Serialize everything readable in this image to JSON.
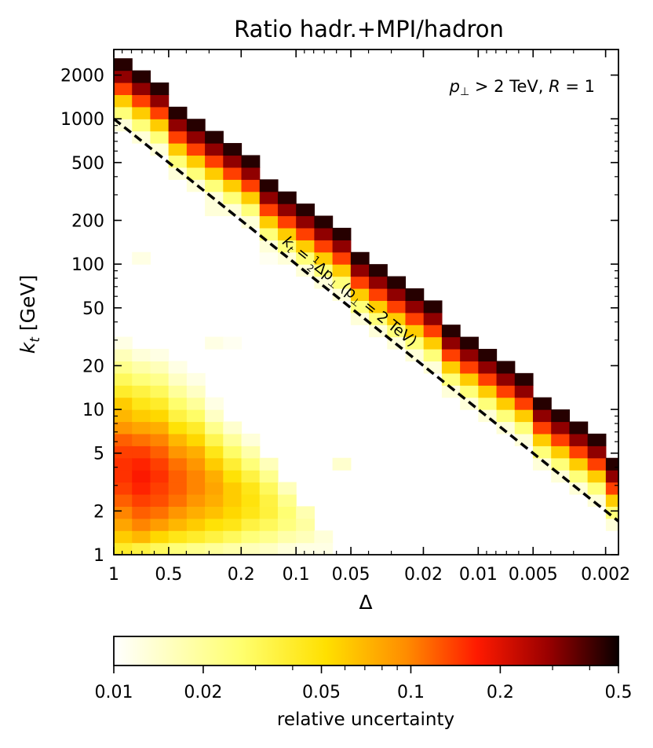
{
  "chart_data": {
    "type": "heatmap",
    "title": "Ratio hadr.+MPI/hadron",
    "annotation": {
      "p": "p",
      "perp": "⊥",
      "gt": " > 2 TeV, ",
      "R": "R",
      "eq": " = 1"
    },
    "xlabel": "Δ",
    "ylabel": "k",
    "ylabel_sub": "t",
    "ylabel_unit": " [GeV]",
    "x_scale": "log",
    "x_reversed": true,
    "xlim": [
      1,
      0.0017
    ],
    "y_scale": "log",
    "ylim": [
      1,
      3000
    ],
    "x_ticks": [
      {
        "v": 1,
        "label": "1"
      },
      {
        "v": 0.5,
        "label": "0.5"
      },
      {
        "v": 0.2,
        "label": "0.2"
      },
      {
        "v": 0.1,
        "label": "0.1"
      },
      {
        "v": 0.05,
        "label": "0.05"
      },
      {
        "v": 0.02,
        "label": "0.02"
      },
      {
        "v": 0.01,
        "label": "0.01"
      },
      {
        "v": 0.005,
        "label": "0.005"
      },
      {
        "v": 0.002,
        "label": "0.002"
      }
    ],
    "y_ticks": [
      {
        "v": 1,
        "label": "1"
      },
      {
        "v": 2,
        "label": "2"
      },
      {
        "v": 5,
        "label": "5"
      },
      {
        "v": 10,
        "label": "10"
      },
      {
        "v": 20,
        "label": "20"
      },
      {
        "v": 50,
        "label": "50"
      },
      {
        "v": 100,
        "label": "100"
      },
      {
        "v": 200,
        "label": "200"
      },
      {
        "v": 500,
        "label": "500"
      },
      {
        "v": 1000,
        "label": "1000"
      },
      {
        "v": 2000,
        "label": "2000"
      }
    ],
    "reference_line": {
      "label_parts": {
        "k": "k",
        "t": "t",
        "eq": " = ",
        "num": "1",
        "den": "2",
        "rest": "Δp",
        "perp": "⊥",
        "paren": " (p",
        "perp2": "⊥",
        "tail": " = 2 TeV)"
      },
      "formula": "k_t = 0.5 * Δ * 2000",
      "style": "dashed"
    },
    "grid": false,
    "bins": {
      "x_bins_per_decade": 10,
      "y_bins_per_decade": 12
    },
    "cells": [
      {
        "ix": 0,
        "iy": 0,
        "v": 0.04
      },
      {
        "ix": 0,
        "iy": 1,
        "v": 0.06
      },
      {
        "ix": 0,
        "iy": 2,
        "v": 0.08
      },
      {
        "ix": 0,
        "iy": 3,
        "v": 0.1
      },
      {
        "ix": 0,
        "iy": 4,
        "v": 0.12
      },
      {
        "ix": 0,
        "iy": 5,
        "v": 0.14
      },
      {
        "ix": 0,
        "iy": 6,
        "v": 0.15
      },
      {
        "ix": 0,
        "iy": 7,
        "v": 0.15
      },
      {
        "ix": 0,
        "iy": 8,
        "v": 0.14
      },
      {
        "ix": 0,
        "iy": 9,
        "v": 0.12
      },
      {
        "ix": 0,
        "iy": 10,
        "v": 0.09
      },
      {
        "ix": 0,
        "iy": 11,
        "v": 0.07
      },
      {
        "ix": 0,
        "iy": 12,
        "v": 0.06
      },
      {
        "ix": 0,
        "iy": 13,
        "v": 0.04
      },
      {
        "ix": 0,
        "iy": 14,
        "v": 0.03
      },
      {
        "ix": 0,
        "iy": 15,
        "v": 0.022
      },
      {
        "ix": 0,
        "iy": 16,
        "v": 0.016
      },
      {
        "ix": 0,
        "iy": 17,
        "v": 0.012
      },
      {
        "ix": 1,
        "iy": 0,
        "v": 0.035
      },
      {
        "ix": 1,
        "iy": 1,
        "v": 0.07
      },
      {
        "ix": 1,
        "iy": 2,
        "v": 0.1
      },
      {
        "ix": 1,
        "iy": 3,
        "v": 0.12
      },
      {
        "ix": 1,
        "iy": 4,
        "v": 0.14
      },
      {
        "ix": 1,
        "iy": 5,
        "v": 0.16
      },
      {
        "ix": 1,
        "iy": 6,
        "v": 0.17
      },
      {
        "ix": 1,
        "iy": 7,
        "v": 0.16
      },
      {
        "ix": 1,
        "iy": 8,
        "v": 0.14
      },
      {
        "ix": 1,
        "iy": 9,
        "v": 0.11
      },
      {
        "ix": 1,
        "iy": 10,
        "v": 0.08
      },
      {
        "ix": 1,
        "iy": 11,
        "v": 0.06
      },
      {
        "ix": 1,
        "iy": 12,
        "v": 0.045
      },
      {
        "ix": 1,
        "iy": 13,
        "v": 0.035
      },
      {
        "ix": 1,
        "iy": 14,
        "v": 0.025
      },
      {
        "ix": 1,
        "iy": 15,
        "v": 0.018
      },
      {
        "ix": 1,
        "iy": 16,
        "v": 0.013
      },
      {
        "ix": 2,
        "iy": 0,
        "v": 0.03
      },
      {
        "ix": 2,
        "iy": 1,
        "v": 0.055
      },
      {
        "ix": 2,
        "iy": 2,
        "v": 0.085
      },
      {
        "ix": 2,
        "iy": 3,
        "v": 0.11
      },
      {
        "ix": 2,
        "iy": 4,
        "v": 0.13
      },
      {
        "ix": 2,
        "iy": 5,
        "v": 0.14
      },
      {
        "ix": 2,
        "iy": 6,
        "v": 0.15
      },
      {
        "ix": 2,
        "iy": 7,
        "v": 0.14
      },
      {
        "ix": 2,
        "iy": 8,
        "v": 0.12
      },
      {
        "ix": 2,
        "iy": 9,
        "v": 0.1
      },
      {
        "ix": 2,
        "iy": 10,
        "v": 0.075
      },
      {
        "ix": 2,
        "iy": 11,
        "v": 0.055
      },
      {
        "ix": 2,
        "iy": 12,
        "v": 0.04
      },
      {
        "ix": 2,
        "iy": 13,
        "v": 0.03
      },
      {
        "ix": 2,
        "iy": 14,
        "v": 0.022
      },
      {
        "ix": 2,
        "iy": 15,
        "v": 0.016
      },
      {
        "ix": 2,
        "iy": 16,
        "v": 0.012
      },
      {
        "ix": 3,
        "iy": 0,
        "v": 0.025
      },
      {
        "ix": 3,
        "iy": 1,
        "v": 0.045
      },
      {
        "ix": 3,
        "iy": 2,
        "v": 0.07
      },
      {
        "ix": 3,
        "iy": 3,
        "v": 0.09
      },
      {
        "ix": 3,
        "iy": 4,
        "v": 0.11
      },
      {
        "ix": 3,
        "iy": 5,
        "v": 0.12
      },
      {
        "ix": 3,
        "iy": 6,
        "v": 0.12
      },
      {
        "ix": 3,
        "iy": 7,
        "v": 0.11
      },
      {
        "ix": 3,
        "iy": 8,
        "v": 0.09
      },
      {
        "ix": 3,
        "iy": 9,
        "v": 0.07
      },
      {
        "ix": 3,
        "iy": 10,
        "v": 0.05
      },
      {
        "ix": 3,
        "iy": 11,
        "v": 0.035
      },
      {
        "ix": 3,
        "iy": 12,
        "v": 0.027
      },
      {
        "ix": 3,
        "iy": 13,
        "v": 0.02
      },
      {
        "ix": 3,
        "iy": 14,
        "v": 0.015
      },
      {
        "ix": 3,
        "iy": 15,
        "v": 0.012
      },
      {
        "ix": 4,
        "iy": 0,
        "v": 0.022
      },
      {
        "ix": 4,
        "iy": 1,
        "v": 0.04
      },
      {
        "ix": 4,
        "iy": 2,
        "v": 0.06
      },
      {
        "ix": 4,
        "iy": 3,
        "v": 0.075
      },
      {
        "ix": 4,
        "iy": 4,
        "v": 0.09
      },
      {
        "ix": 4,
        "iy": 5,
        "v": 0.1
      },
      {
        "ix": 4,
        "iy": 6,
        "v": 0.1
      },
      {
        "ix": 4,
        "iy": 7,
        "v": 0.09
      },
      {
        "ix": 4,
        "iy": 8,
        "v": 0.075
      },
      {
        "ix": 4,
        "iy": 9,
        "v": 0.055
      },
      {
        "ix": 4,
        "iy": 10,
        "v": 0.04
      },
      {
        "ix": 4,
        "iy": 11,
        "v": 0.028
      },
      {
        "ix": 4,
        "iy": 12,
        "v": 0.02
      },
      {
        "ix": 4,
        "iy": 13,
        "v": 0.015
      },
      {
        "ix": 4,
        "iy": 14,
        "v": 0.012
      },
      {
        "ix": 5,
        "iy": 0,
        "v": 0.02
      },
      {
        "ix": 5,
        "iy": 1,
        "v": 0.035
      },
      {
        "ix": 5,
        "iy": 2,
        "v": 0.05
      },
      {
        "ix": 5,
        "iy": 3,
        "v": 0.065
      },
      {
        "ix": 5,
        "iy": 4,
        "v": 0.075
      },
      {
        "ix": 5,
        "iy": 5,
        "v": 0.08
      },
      {
        "ix": 5,
        "iy": 6,
        "v": 0.075
      },
      {
        "ix": 5,
        "iy": 7,
        "v": 0.06
      },
      {
        "ix": 5,
        "iy": 8,
        "v": 0.045
      },
      {
        "ix": 5,
        "iy": 9,
        "v": 0.032
      },
      {
        "ix": 5,
        "iy": 10,
        "v": 0.022
      },
      {
        "ix": 5,
        "iy": 11,
        "v": 0.015
      },
      {
        "ix": 5,
        "iy": 12,
        "v": 0.012
      },
      {
        "ix": 6,
        "iy": 0,
        "v": 0.018
      },
      {
        "ix": 6,
        "iy": 1,
        "v": 0.03
      },
      {
        "ix": 6,
        "iy": 2,
        "v": 0.045
      },
      {
        "ix": 6,
        "iy": 3,
        "v": 0.055
      },
      {
        "ix": 6,
        "iy": 4,
        "v": 0.06
      },
      {
        "ix": 6,
        "iy": 5,
        "v": 0.06
      },
      {
        "ix": 6,
        "iy": 6,
        "v": 0.05
      },
      {
        "ix": 6,
        "iy": 7,
        "v": 0.038
      },
      {
        "ix": 6,
        "iy": 8,
        "v": 0.028
      },
      {
        "ix": 6,
        "iy": 9,
        "v": 0.02
      },
      {
        "ix": 6,
        "iy": 10,
        "v": 0.014
      },
      {
        "ix": 7,
        "iy": 0,
        "v": 0.016
      },
      {
        "ix": 7,
        "iy": 1,
        "v": 0.025
      },
      {
        "ix": 7,
        "iy": 2,
        "v": 0.035
      },
      {
        "ix": 7,
        "iy": 3,
        "v": 0.045
      },
      {
        "ix": 7,
        "iy": 4,
        "v": 0.048
      },
      {
        "ix": 7,
        "iy": 5,
        "v": 0.045
      },
      {
        "ix": 7,
        "iy": 6,
        "v": 0.035
      },
      {
        "ix": 7,
        "iy": 7,
        "v": 0.025
      },
      {
        "ix": 7,
        "iy": 8,
        "v": 0.018
      },
      {
        "ix": 7,
        "iy": 9,
        "v": 0.013
      },
      {
        "ix": 8,
        "iy": 0,
        "v": 0.015
      },
      {
        "ix": 8,
        "iy": 1,
        "v": 0.022
      },
      {
        "ix": 8,
        "iy": 2,
        "v": 0.03
      },
      {
        "ix": 8,
        "iy": 3,
        "v": 0.036
      },
      {
        "ix": 8,
        "iy": 4,
        "v": 0.035
      },
      {
        "ix": 8,
        "iy": 5,
        "v": 0.03
      },
      {
        "ix": 8,
        "iy": 6,
        "v": 0.022
      },
      {
        "ix": 8,
        "iy": 7,
        "v": 0.016
      },
      {
        "ix": 9,
        "iy": 0,
        "v": 0.013
      },
      {
        "ix": 9,
        "iy": 1,
        "v": 0.018
      },
      {
        "ix": 9,
        "iy": 2,
        "v": 0.024
      },
      {
        "ix": 9,
        "iy": 3,
        "v": 0.026
      },
      {
        "ix": 9,
        "iy": 4,
        "v": 0.022
      },
      {
        "ix": 9,
        "iy": 5,
        "v": 0.016
      },
      {
        "ix": 10,
        "iy": 0,
        "v": 0.012
      },
      {
        "ix": 10,
        "iy": 1,
        "v": 0.016
      },
      {
        "ix": 10,
        "iy": 2,
        "v": 0.019
      },
      {
        "ix": 10,
        "iy": 3,
        "v": 0.017
      },
      {
        "ix": 11,
        "iy": 0,
        "v": 0.012
      },
      {
        "ix": 11,
        "iy": 1,
        "v": 0.013
      },
      {
        "ix": 5,
        "iy": 17,
        "v": 0.012
      },
      {
        "ix": 6,
        "iy": 17,
        "v": 0.011
      },
      {
        "ix": 1,
        "iy": 24,
        "v": 0.012
      },
      {
        "ix": 5,
        "iy": 28,
        "v": 0.013
      },
      {
        "ix": 8,
        "iy": 24,
        "v": 0.011
      },
      {
        "ix": 12,
        "iy": 7,
        "v": 0.014
      }
    ],
    "band": {
      "description": "diagonal band of high-uncertainty bins just above k_t = Δ p⊥ / 2",
      "rows_above_line": 5,
      "values_by_row": [
        0.013,
        0.025,
        0.06,
        0.14,
        0.3,
        0.45
      ]
    },
    "colorbar": {
      "label": "relative uncertainty",
      "scale": "log",
      "range": [
        0.01,
        0.5
      ],
      "colormap": "hot_r",
      "ticks": [
        {
          "v": 0.01,
          "label": "0.01"
        },
        {
          "v": 0.02,
          "label": "0.02"
        },
        {
          "v": 0.05,
          "label": "0.05"
        },
        {
          "v": 0.1,
          "label": "0.1"
        },
        {
          "v": 0.2,
          "label": "0.2"
        },
        {
          "v": 0.5,
          "label": "0.5"
        }
      ]
    }
  }
}
